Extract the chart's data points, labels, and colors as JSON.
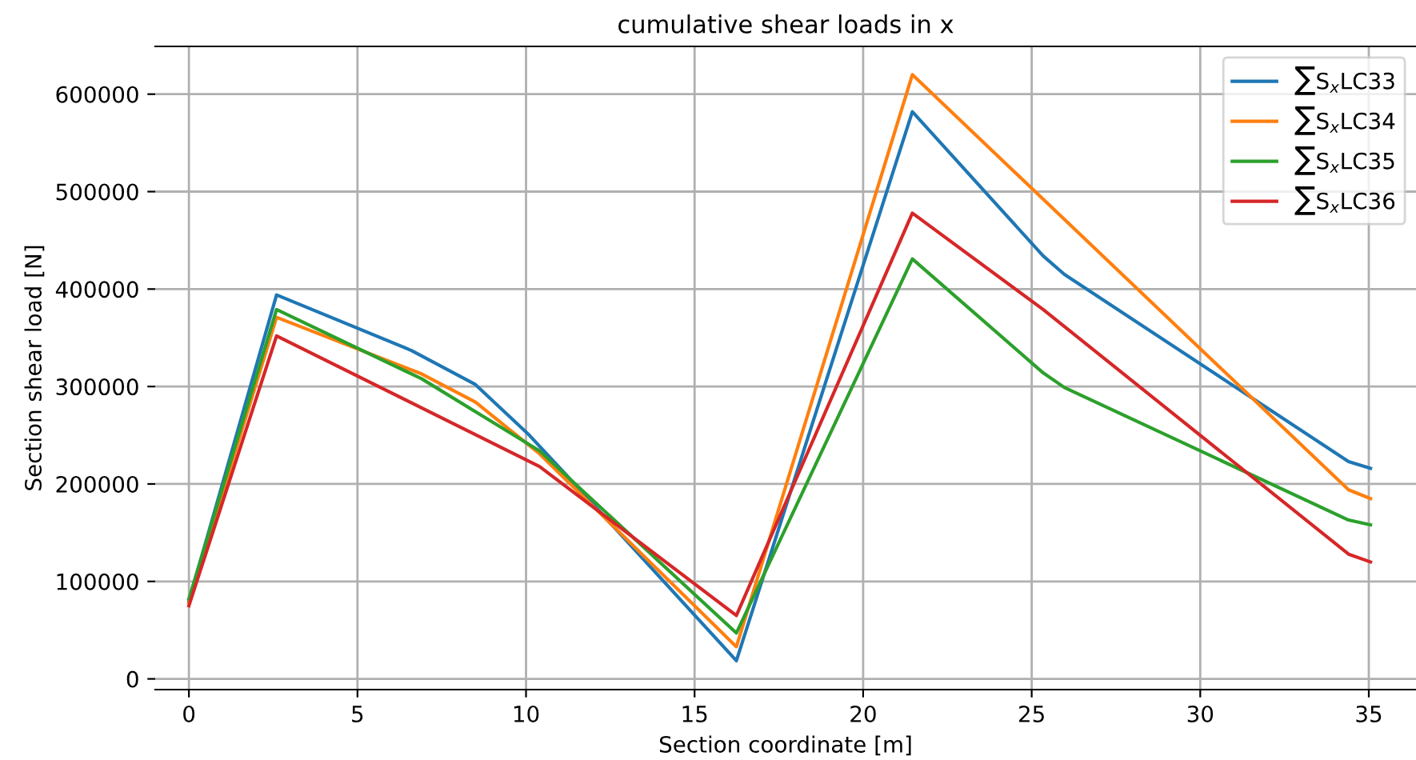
{
  "chart_data": {
    "type": "line",
    "title": "cumulative shear loads in x",
    "xlabel": "Section coordinate [m]",
    "ylabel": "Section shear load [N]",
    "xlim": [
      -1,
      36.4
    ],
    "xticks": [
      0,
      5,
      10,
      15,
      20,
      25,
      30,
      35
    ],
    "ylim": [
      -11000,
      649000
    ],
    "yticks": [
      0,
      100000,
      200000,
      300000,
      400000,
      500000,
      600000
    ],
    "grid": true,
    "legend": "top right",
    "marker": "none",
    "line_style": "solid",
    "series": [
      {
        "name": "∑S$_{x}$LC33",
        "color": "#1f77b4",
        "x": [
          0,
          2.6,
          6.6,
          8.5,
          10.1,
          11.2,
          16.24,
          21.46,
          25.34,
          25.97,
          34.4,
          35.05
        ],
        "values": [
          80000,
          394000,
          337000,
          302000,
          250000,
          209000,
          18600,
          582000,
          434000,
          415000,
          223000,
          216000
        ]
      },
      {
        "name": "∑S$_{x}$LC34",
        "color": "#ff7f0e",
        "x": [
          0,
          2.6,
          6.9,
          8.5,
          10.4,
          16.24,
          21.46,
          34.4,
          35.05
        ],
        "values": [
          78000,
          371000,
          313000,
          284000,
          231000,
          33000,
          620000,
          194000,
          185000
        ]
      },
      {
        "name": "∑S$_{x}$LC35",
        "color": "#2ca02c",
        "x": [
          0,
          2.6,
          6.9,
          10.4,
          16.24,
          21.46,
          25.34,
          25.97,
          34.4,
          35.05
        ],
        "values": [
          82000,
          379000,
          308000,
          234000,
          47000,
          431000,
          314000,
          299000,
          163000,
          158000
        ]
      },
      {
        "name": "∑S$_{x}$LC36",
        "color": "#d62728",
        "x": [
          0,
          2.6,
          10.4,
          16.24,
          21.46,
          25.34,
          34.4,
          35.05
        ],
        "values": [
          75000,
          352000,
          218000,
          65000,
          478000,
          379000,
          128000,
          120000
        ]
      }
    ]
  }
}
